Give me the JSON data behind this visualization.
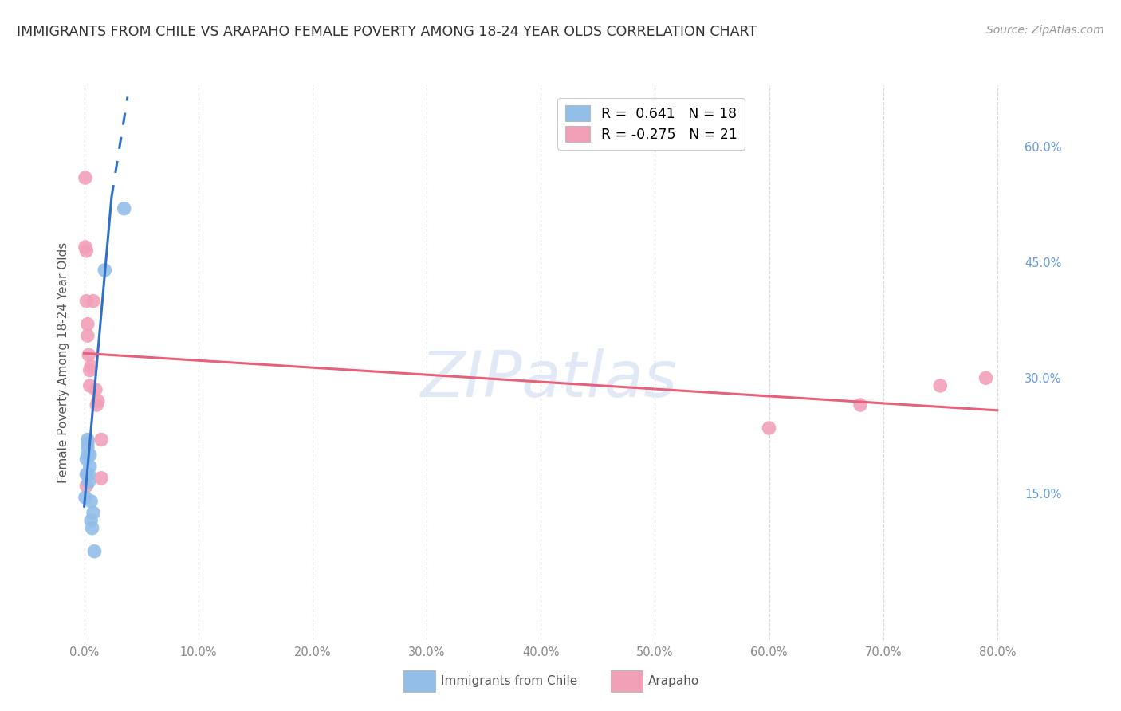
{
  "title": "IMMIGRANTS FROM CHILE VS ARAPAHO FEMALE POVERTY AMONG 18-24 YEAR OLDS CORRELATION CHART",
  "source": "Source: ZipAtlas.com",
  "ylabel": "Female Poverty Among 18-24 Year Olds",
  "ytick_labels": [
    "15.0%",
    "30.0%",
    "45.0%",
    "60.0%"
  ],
  "ytick_values": [
    0.15,
    0.3,
    0.45,
    0.6
  ],
  "xtick_values": [
    0.0,
    0.1,
    0.2,
    0.3,
    0.4,
    0.5,
    0.6,
    0.7,
    0.8
  ],
  "xtick_labels": [
    "0.0%",
    "10.0%",
    "20.0%",
    "30.0%",
    "40.0%",
    "50.0%",
    "60.0%",
    "70.0%",
    "80.0%"
  ],
  "xlim": [
    -0.005,
    0.82
  ],
  "ylim": [
    -0.04,
    0.68
  ],
  "blue_R": 0.641,
  "blue_N": 18,
  "pink_R": -0.275,
  "pink_N": 21,
  "blue_color": "#92BEE8",
  "pink_color": "#F2A0B8",
  "blue_line_color": "#3070C8",
  "pink_line_color": "#E8607A",
  "watermark": "ZIPatlas",
  "blue_points_x": [
    0.001,
    0.002,
    0.002,
    0.003,
    0.003,
    0.003,
    0.003,
    0.004,
    0.004,
    0.005,
    0.005,
    0.006,
    0.006,
    0.007,
    0.008,
    0.009,
    0.018,
    0.035
  ],
  "blue_points_y": [
    0.145,
    0.175,
    0.195,
    0.2,
    0.21,
    0.215,
    0.22,
    0.165,
    0.175,
    0.185,
    0.2,
    0.14,
    0.115,
    0.105,
    0.125,
    0.075,
    0.44,
    0.52
  ],
  "pink_points_x": [
    0.001,
    0.001,
    0.002,
    0.002,
    0.003,
    0.003,
    0.004,
    0.005,
    0.005,
    0.006,
    0.01,
    0.011,
    0.012,
    0.015,
    0.015,
    0.6,
    0.68,
    0.75,
    0.79,
    0.002,
    0.008
  ],
  "pink_points_y": [
    0.56,
    0.47,
    0.465,
    0.4,
    0.37,
    0.355,
    0.33,
    0.31,
    0.29,
    0.315,
    0.285,
    0.265,
    0.27,
    0.22,
    0.17,
    0.235,
    0.265,
    0.29,
    0.3,
    0.16,
    0.4
  ],
  "blue_trend_start_x": 0.0,
  "blue_trend_start_y": 0.133,
  "blue_trend_end_x": 0.024,
  "blue_trend_end_y": 0.535,
  "blue_trend_dash_end_x": 0.038,
  "blue_trend_dash_end_y": 0.665,
  "pink_trend_start_x": 0.0,
  "pink_trend_start_y": 0.332,
  "pink_trend_end_x": 0.8,
  "pink_trend_end_y": 0.258,
  "legend_blue_label": "R =  0.641   N = 18",
  "legend_pink_label": "R = -0.275   N = 21",
  "bottom_legend_blue": "Immigrants from Chile",
  "bottom_legend_pink": "Arapaho"
}
